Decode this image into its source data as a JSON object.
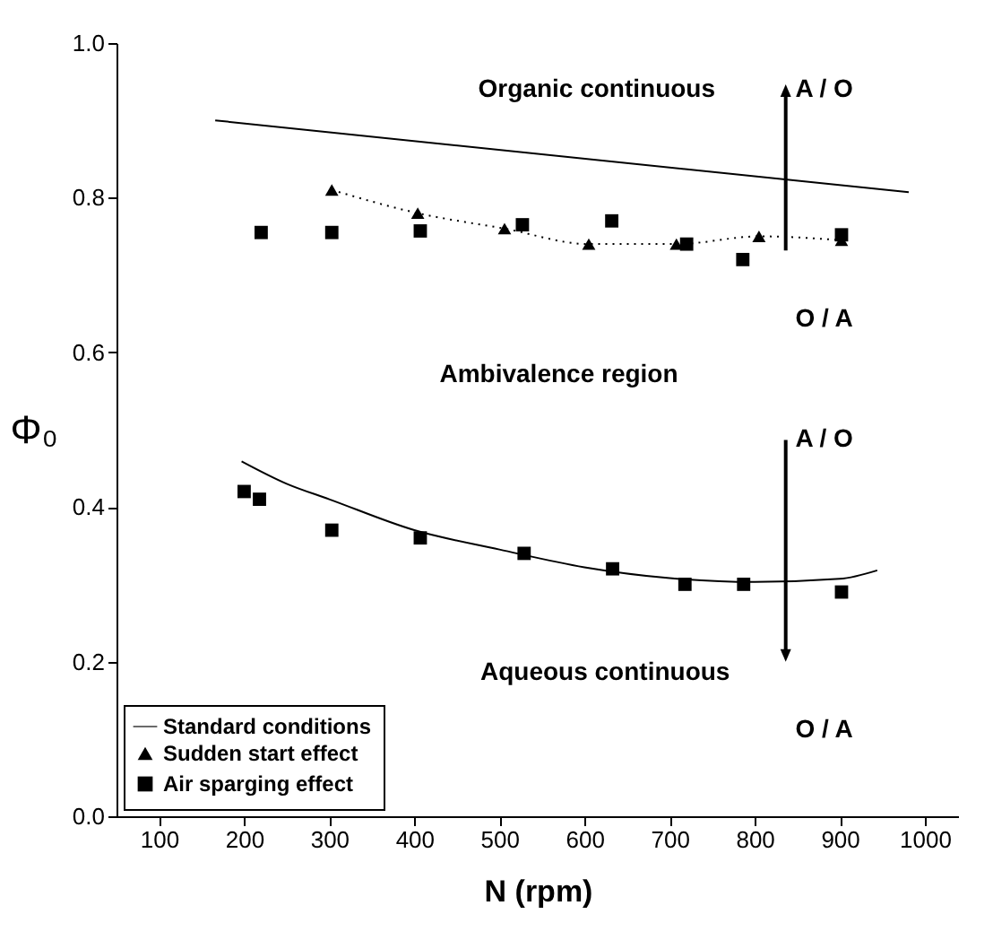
{
  "chart_data": {
    "type": "line",
    "xlabel": "N (rpm)",
    "ylabel": "Φ₀",
    "xlim": [
      50,
      1040
    ],
    "ylim": [
      0,
      1
    ],
    "xticks": [
      100,
      200,
      300,
      400,
      500,
      600,
      700,
      800,
      900,
      1000
    ],
    "yticks": [
      {
        "value": 0,
        "label": "0.0"
      },
      0.2,
      0.4,
      0.6,
      0.8,
      {
        "value": 1,
        "label": "1.0"
      }
    ],
    "grid": false,
    "legend": "bottom left",
    "series": [
      {
        "name": "Standard conditions",
        "color": "#000000",
        "marker": "none",
        "line_style": "solid",
        "x": [
          166,
          981
        ],
        "values": [
          0.9,
          0.807
        ]
      },
      {
        "color": "#000000",
        "marker": "none",
        "line_style": "solid",
        "x": [
          197,
          250,
          300,
          400,
          500,
          600,
          700,
          800,
          900,
          944
        ],
        "values": [
          0.459,
          0.43,
          0.41,
          0.37,
          0.345,
          0.322,
          0.308,
          0.303,
          0.307,
          0.318
        ]
      },
      {
        "name": "Sudden start effect",
        "color": "#000000",
        "marker": "triangle",
        "line_style": "dotted",
        "x": [
          303,
          404,
          506,
          605,
          708,
          805,
          902
        ],
        "values": [
          0.81,
          0.78,
          0.76,
          0.74,
          0.74,
          0.75,
          0.745
        ]
      },
      {
        "name": "Air sparging effect",
        "type": "scatter",
        "color": "#000000",
        "marker": "square",
        "x": [
          220,
          303,
          407,
          527,
          632,
          720,
          786,
          902,
          200,
          218,
          303,
          407,
          529,
          633,
          718,
          787,
          902
        ],
        "values": [
          0.755,
          0.755,
          0.757,
          0.765,
          0.77,
          0.74,
          0.72,
          0.752,
          0.42,
          0.41,
          0.37,
          0.36,
          0.34,
          0.32,
          0.3,
          0.3,
          0.29
        ]
      }
    ],
    "annotations": [
      "Organic continuous",
      "Ambivalence region",
      "Aqueous continuous",
      "O / A",
      "A / O",
      "A / O",
      "O / A"
    ]
  }
}
